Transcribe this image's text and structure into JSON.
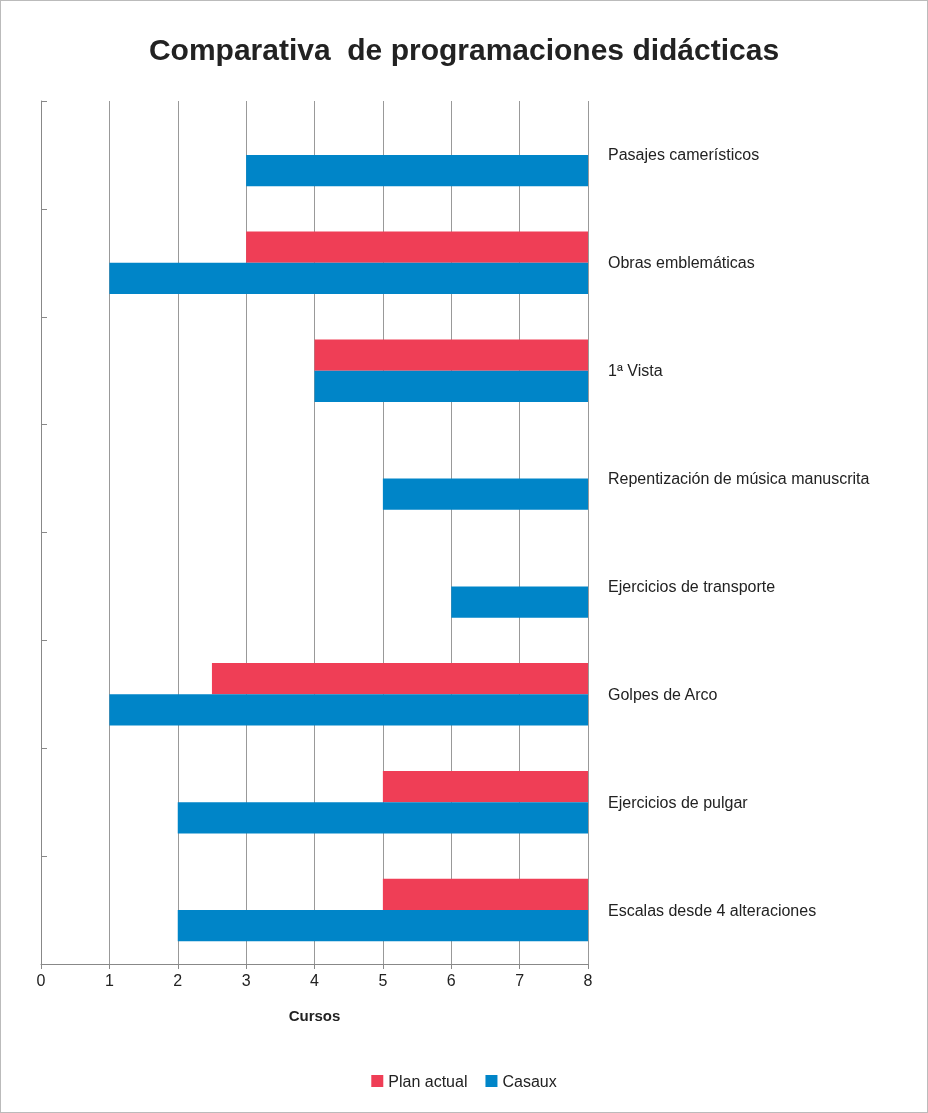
{
  "chart_data": {
    "type": "bar",
    "orientation": "horizontal",
    "title": "Comparativa  de programaciones didácticas",
    "xlabel": "Cursos",
    "categories": [
      "Pasajes camerísticos",
      "Obras emblemáticas",
      "1ª Vista",
      "Repentización de música manuscrita",
      "Ejercicios de transporte",
      "Golpes de Arco",
      "Ejercicios de pulgar",
      "Escalas desde 4 alteraciones"
    ],
    "series": [
      {
        "name": "Plan actual",
        "color": "#ef3e56",
        "base": [
          null,
          3,
          4,
          null,
          null,
          2.5,
          5,
          5
        ],
        "values": [
          null,
          5,
          4,
          null,
          null,
          5.5,
          3,
          3
        ]
      },
      {
        "name": "Casaux",
        "color": "#0085c8",
        "base": [
          3,
          1,
          4,
          5,
          6,
          1,
          2,
          2
        ],
        "values": [
          5,
          7,
          4,
          3,
          2,
          7,
          6,
          6
        ]
      }
    ],
    "xlim": [
      0,
      8
    ],
    "xticks": [
      0,
      1,
      2,
      3,
      4,
      5,
      6,
      7,
      8
    ],
    "grid": "x",
    "legend": "bottom"
  }
}
